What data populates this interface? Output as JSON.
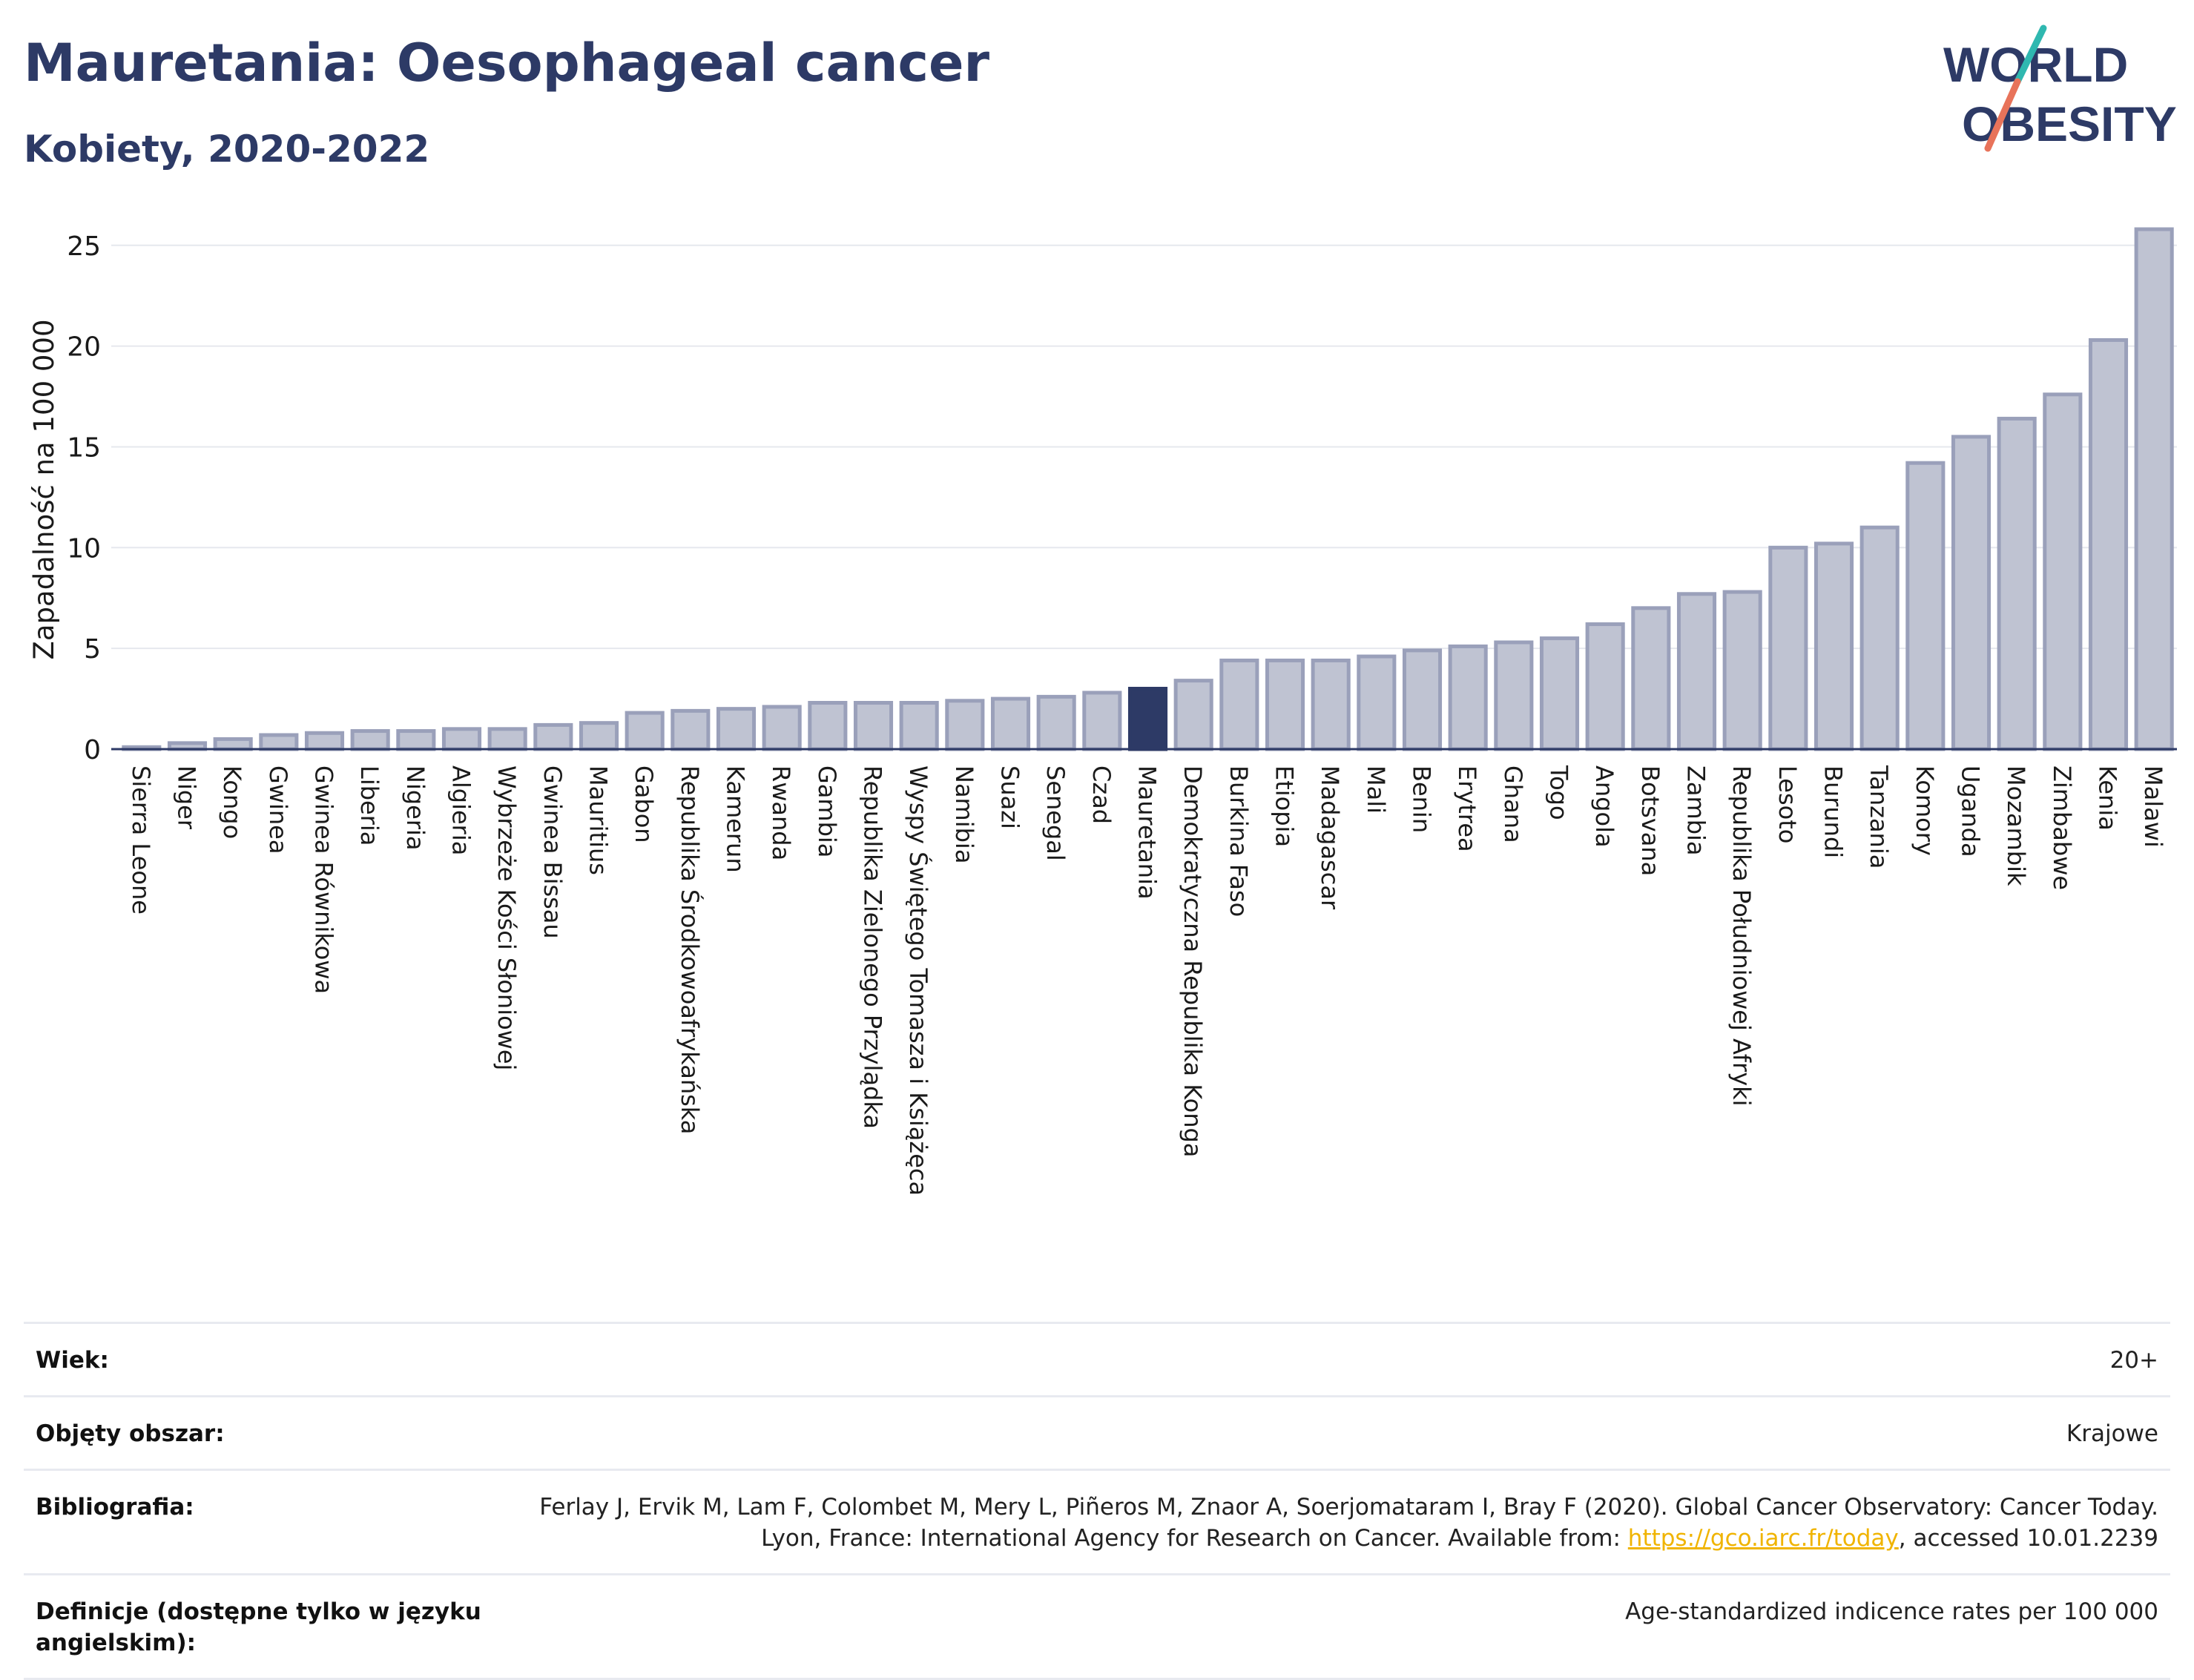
{
  "header": {
    "title": "Mauretania: Oesophageal cancer",
    "subtitle": "Kobiety, 2020-2022"
  },
  "logo": {
    "line1": "WORLD",
    "line2": "OBESITY",
    "colors": {
      "text": "#2d3a66",
      "slash_top": "#2fb8b0",
      "slash_bottom": "#e8735a"
    }
  },
  "chart_data": {
    "type": "bar",
    "ylabel": "Zapadalność na 100 000",
    "xlabel": "",
    "ylim": [
      0,
      26.5
    ],
    "yticks": [
      0,
      5,
      10,
      15,
      20,
      25
    ],
    "grid": true,
    "highlight": "Mauretania",
    "colors": {
      "bar": "#bfc3d2",
      "bar_edge": "#9aa0ba",
      "highlight": "#2d3a66"
    },
    "categories": [
      "Sierra Leone",
      "Niger",
      "Kongo",
      "Gwinea",
      "Gwinea Równikowa",
      "Liberia",
      "Nigeria",
      "Algieria",
      "Wybrzeże Kości Słoniowej",
      "Gwinea Bissau",
      "Mauritius",
      "Gabon",
      "Republika Środkowoafrykańska",
      "Kamerun",
      "Rwanda",
      "Gambia",
      "Republika Zielonego Przylądka",
      "Wyspy Świętego Tomasza i Książęca",
      "Namibia",
      "Suazi",
      "Senegal",
      "Czad",
      "Mauretania",
      "Demokratyczna Republika Konga",
      "Burkina Faso",
      "Etiopia",
      "Madagascar",
      "Mali",
      "Benin",
      "Erytrea",
      "Ghana",
      "Togo",
      "Angola",
      "Botsvana",
      "Zambia",
      "Republika Południowej Afryki",
      "Lesoto",
      "Burundi",
      "Tanzania",
      "Komory",
      "Uganda",
      "Mozambik",
      "Zimbabwe",
      "Kenia",
      "Malawi"
    ],
    "values": [
      0.1,
      0.3,
      0.5,
      0.7,
      0.8,
      0.9,
      0.9,
      1.0,
      1.0,
      1.2,
      1.3,
      1.8,
      1.9,
      2.0,
      2.1,
      2.3,
      2.3,
      2.3,
      2.4,
      2.5,
      2.6,
      2.8,
      3.0,
      3.4,
      4.4,
      4.4,
      4.4,
      4.6,
      4.9,
      5.1,
      5.3,
      5.5,
      6.2,
      7.0,
      7.7,
      7.8,
      10.0,
      10.2,
      11.0,
      14.2,
      15.5,
      16.4,
      17.6,
      20.3,
      25.8
    ]
  },
  "meta": [
    {
      "label": "Wiek:",
      "value": "20+"
    },
    {
      "label": "Objęty obszar:",
      "value": "Krajowe"
    },
    {
      "label": "Bibliografia:",
      "value_before": "Ferlay J, Ervik M, Lam F, Colombet M, Mery L, Piñeros M, Znaor A, Soerjomataram I, Bray F (2020). Global Cancer Observatory: Cancer Today. Lyon, France: International Agency for Research on Cancer. Available from: ",
      "link": "https://gco.iarc.fr/today",
      "value_after": ", accessed 10.01.2239"
    },
    {
      "label": "Definicje (dostępne tylko w języku angielskim):",
      "value": "Age-standardized indicence rates per 100 000"
    }
  ]
}
